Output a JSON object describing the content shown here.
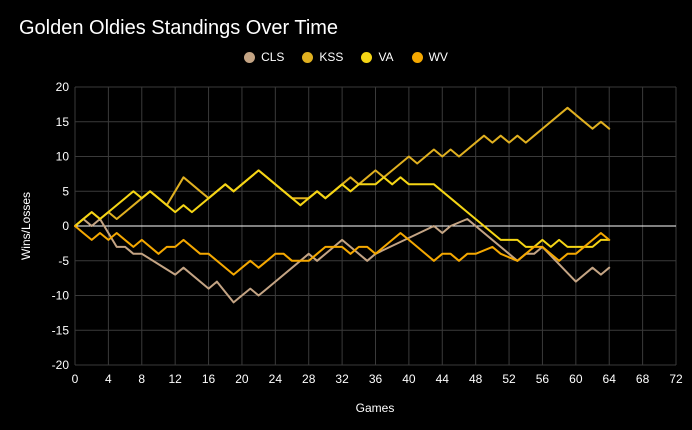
{
  "chart_data": {
    "type": "line",
    "title": "Golden Oldies Standings Over Time",
    "xlabel": "Games",
    "ylabel": "Wins/Losses",
    "xlim": [
      0,
      72
    ],
    "ylim": [
      -20,
      20
    ],
    "xticks": [
      0,
      4,
      8,
      12,
      16,
      20,
      24,
      28,
      32,
      36,
      40,
      44,
      48,
      52,
      56,
      60,
      64,
      68,
      72
    ],
    "yticks": [
      -20,
      -15,
      -10,
      -5,
      0,
      5,
      10,
      15,
      20
    ],
    "grid": true,
    "legend_position": "top-center",
    "series": [
      {
        "name": "CLS",
        "color": "#c4a484",
        "x": [
          0,
          1,
          2,
          3,
          5,
          6,
          7,
          8,
          12,
          13,
          16,
          17,
          19,
          20,
          21,
          22,
          23,
          28,
          29,
          31,
          32,
          35,
          36,
          43,
          44,
          45,
          47,
          53,
          54,
          55,
          56,
          60,
          62,
          63,
          64
        ],
        "y": [
          0,
          1,
          0,
          1,
          -3,
          -3,
          -4,
          -4,
          -7,
          -6,
          -9,
          -8,
          -11,
          -10,
          -9,
          -10,
          -9,
          -4,
          -5,
          -3,
          -2,
          -5,
          -4,
          0,
          -1,
          0,
          1,
          -5,
          -4,
          -4,
          -3,
          -8,
          -6,
          -7,
          -6
        ]
      },
      {
        "name": "KSS",
        "color": "#e0b020",
        "x": [
          0,
          1,
          2,
          3,
          4,
          5,
          7,
          8,
          9,
          10,
          11,
          13,
          14,
          15,
          16,
          17,
          18,
          19,
          22,
          23,
          24,
          25,
          26,
          28,
          29,
          30,
          32,
          33,
          34,
          36,
          37,
          38,
          39,
          40,
          41,
          43,
          44,
          45,
          46,
          49,
          50,
          51,
          52,
          53,
          54,
          55,
          59,
          60,
          61,
          62,
          63,
          64
        ],
        "y": [
          0,
          1,
          2,
          1,
          2,
          1,
          3,
          4,
          5,
          4,
          3,
          7,
          6,
          5,
          4,
          5,
          6,
          5,
          8,
          7,
          6,
          5,
          4,
          4,
          5,
          4,
          6,
          7,
          6,
          8,
          7,
          8,
          9,
          10,
          9,
          11,
          10,
          11,
          10,
          13,
          12,
          13,
          12,
          13,
          12,
          13,
          17,
          16,
          15,
          14,
          15,
          14
        ]
      },
      {
        "name": "VA",
        "color": "#f5d515",
        "x": [
          0,
          1,
          2,
          3,
          7,
          8,
          9,
          12,
          13,
          14,
          17,
          18,
          19,
          20,
          21,
          22,
          27,
          28,
          29,
          30,
          31,
          32,
          33,
          34,
          36,
          37,
          38,
          39,
          40,
          43,
          44,
          45,
          46,
          47,
          50,
          51,
          53,
          54,
          55,
          56,
          57,
          58,
          59,
          62,
          63,
          64
        ],
        "y": [
          0,
          1,
          2,
          1,
          5,
          4,
          5,
          2,
          3,
          2,
          5,
          6,
          5,
          6,
          7,
          8,
          3,
          4,
          5,
          4,
          5,
          6,
          5,
          6,
          6,
          7,
          6,
          7,
          6,
          6,
          5,
          4,
          3,
          2,
          -1,
          -2,
          -2,
          -3,
          -3,
          -2,
          -3,
          -2,
          -3,
          -3,
          -2,
          -2
        ]
      },
      {
        "name": "WV",
        "color": "#f5a800",
        "x": [
          0,
          1,
          2,
          3,
          4,
          5,
          7,
          8,
          10,
          11,
          12,
          13,
          15,
          16,
          19,
          20,
          21,
          22,
          23,
          24,
          25,
          26,
          28,
          29,
          30,
          32,
          33,
          34,
          35,
          36,
          37,
          38,
          39,
          40,
          43,
          44,
          45,
          46,
          47,
          48,
          50,
          51,
          53,
          54,
          55,
          56,
          58,
          59,
          60,
          63,
          64
        ],
        "y": [
          0,
          -1,
          -2,
          -1,
          -2,
          -1,
          -3,
          -2,
          -4,
          -3,
          -3,
          -2,
          -4,
          -4,
          -7,
          -6,
          -5,
          -6,
          -5,
          -4,
          -4,
          -5,
          -5,
          -4,
          -3,
          -3,
          -4,
          -3,
          -3,
          -4,
          -3,
          -2,
          -1,
          -2,
          -5,
          -4,
          -4,
          -5,
          -4,
          -4,
          -3,
          -4,
          -5,
          -4,
          -3,
          -3,
          -5,
          -4,
          -4,
          -1,
          -2
        ]
      }
    ]
  }
}
